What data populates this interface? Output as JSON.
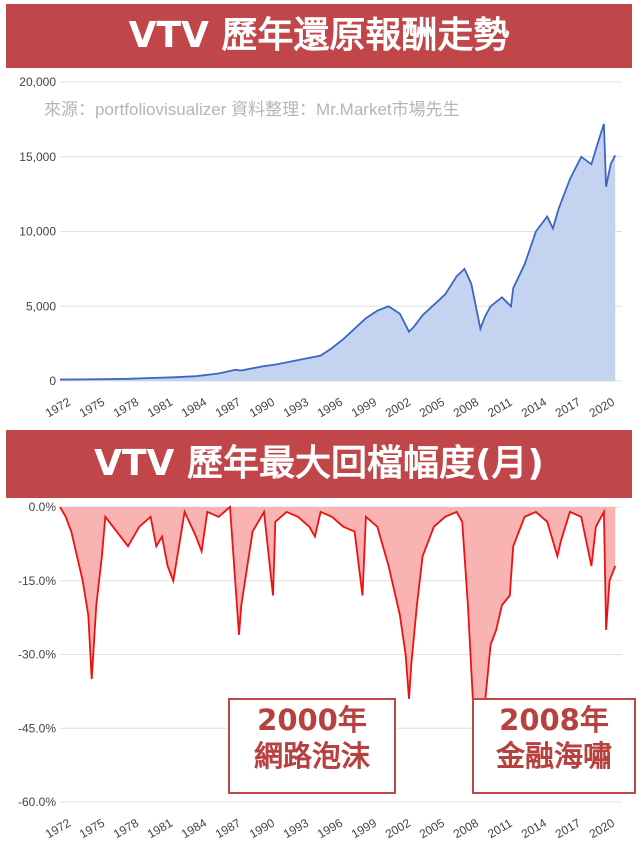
{
  "banners": {
    "top": "VTV 歷年還原報酬走勢",
    "bottom": "VTV 歷年最大回檔幅度(月)"
  },
  "annotations": {
    "source_note": "來源：portfoliovisualizer 資料整理：Mr.Market市場先生",
    "callout_2000_line1": "2000年",
    "callout_2000_line2": "網路泡沫",
    "callout_2008_line1": "2008年",
    "callout_2008_line2": "金融海嘯"
  },
  "colors": {
    "banner_bg": "#c0464a",
    "line_blue": "#3a66c4",
    "area_blue": "#c3d3f0",
    "line_red": "#ee1111",
    "area_red": "#f9b3b3",
    "callout_text": "#b8403f"
  },
  "chart_data": [
    {
      "type": "area",
      "title": "VTV 歷年還原報酬走勢",
      "x_ticks": [
        "1972",
        "1975",
        "1978",
        "1981",
        "1984",
        "1987",
        "1990",
        "1993",
        "1996",
        "1999",
        "2002",
        "2005",
        "2008",
        "2011",
        "2014",
        "2017",
        "2020"
      ],
      "y_ticks": [
        "0",
        "5,000",
        "10,000",
        "15,000",
        "20,000"
      ],
      "ylim": [
        0,
        20000
      ],
      "xlim": [
        1972,
        2021.6
      ],
      "grid": true,
      "series": [
        {
          "x": [
            1972,
            1974,
            1976,
            1978,
            1980,
            1982,
            1984,
            1986,
            1987.5,
            1988,
            1990,
            1991,
            1993,
            1995,
            1996,
            1997,
            1998,
            1999,
            2000,
            2001,
            2002,
            2002.8,
            2003.2,
            2004,
            2005,
            2006,
            2007,
            2007.7,
            2008.3,
            2009.1,
            2009.5,
            2010,
            2011,
            2011.8,
            2012,
            2013,
            2014,
            2015,
            2015.5,
            2016,
            2017,
            2018,
            2018.9,
            2019.5,
            2020,
            2020.2,
            2020.6,
            2021
          ],
          "y": [
            100,
            110,
            130,
            150,
            200,
            250,
            320,
            500,
            750,
            700,
            1000,
            1100,
            1400,
            1700,
            2200,
            2800,
            3500,
            4200,
            4700,
            5000,
            4500,
            3300,
            3600,
            4400,
            5100,
            5800,
            7000,
            7500,
            6500,
            3500,
            4300,
            5000,
            5600,
            5000,
            6200,
            7800,
            10000,
            11000,
            10200,
            11500,
            13500,
            15000,
            14500,
            16000,
            17200,
            13000,
            14500,
            15100
          ]
        }
      ]
    },
    {
      "type": "area",
      "title": "VTV 歷年最大回檔幅度(月)",
      "x_ticks": [
        "1972",
        "1975",
        "1978",
        "1981",
        "1984",
        "1987",
        "1990",
        "1993",
        "1996",
        "1999",
        "2002",
        "2005",
        "2008",
        "2011",
        "2014",
        "2017",
        "2020"
      ],
      "y_ticks": [
        "0.0%",
        "-15.0%",
        "-30.0%",
        "-45.0%",
        "-60.0%"
      ],
      "ylim": [
        -60,
        0
      ],
      "xlim": [
        1972,
        2021.6
      ],
      "grid": true,
      "series": [
        {
          "x": [
            1972,
            1972.5,
            1973,
            1973.5,
            1974,
            1974.5,
            1974.8,
            1975.2,
            1975.7,
            1976,
            1977,
            1978,
            1979,
            1980,
            1980.5,
            1981,
            1981.5,
            1982,
            1982.5,
            1983,
            1984,
            1984.5,
            1985,
            1986,
            1987,
            1987.8,
            1988,
            1989,
            1990,
            1990.8,
            1991,
            1992,
            1993,
            1994,
            1994.5,
            1995,
            1996,
            1997,
            1998,
            1998.7,
            1999,
            2000,
            2001,
            2002,
            2002.5,
            2002.8,
            2003,
            2003.5,
            2004,
            2005,
            2006,
            2007,
            2007.5,
            2008,
            2008.5,
            2009.1,
            2009.5,
            2010,
            2010.5,
            2011,
            2011.7,
            2012,
            2013,
            2014,
            2015,
            2015.9,
            2016.2,
            2017,
            2018,
            2018.9,
            2019.3,
            2020,
            2020.2,
            2020.5,
            2021
          ],
          "y": [
            0,
            -2,
            -5,
            -10,
            -15,
            -22,
            -35,
            -20,
            -10,
            -2,
            -5,
            -8,
            -4,
            -2,
            -8,
            -6,
            -12,
            -15,
            -8,
            -1,
            -6,
            -9,
            -1,
            -2,
            0,
            -26,
            -20,
            -5,
            -1,
            -18,
            -3,
            -1,
            -2,
            -4,
            -6,
            -1,
            -2,
            -4,
            -5,
            -18,
            -2,
            -4,
            -12,
            -22,
            -30,
            -39,
            -32,
            -20,
            -10,
            -4,
            -2,
            -1,
            -3,
            -20,
            -42,
            -55,
            -40,
            -28,
            -25,
            -20,
            -18,
            -8,
            -2,
            -1,
            -3,
            -10,
            -7,
            -1,
            -2,
            -12,
            -4,
            -1,
            -25,
            -15,
            -12
          ]
        }
      ]
    }
  ]
}
